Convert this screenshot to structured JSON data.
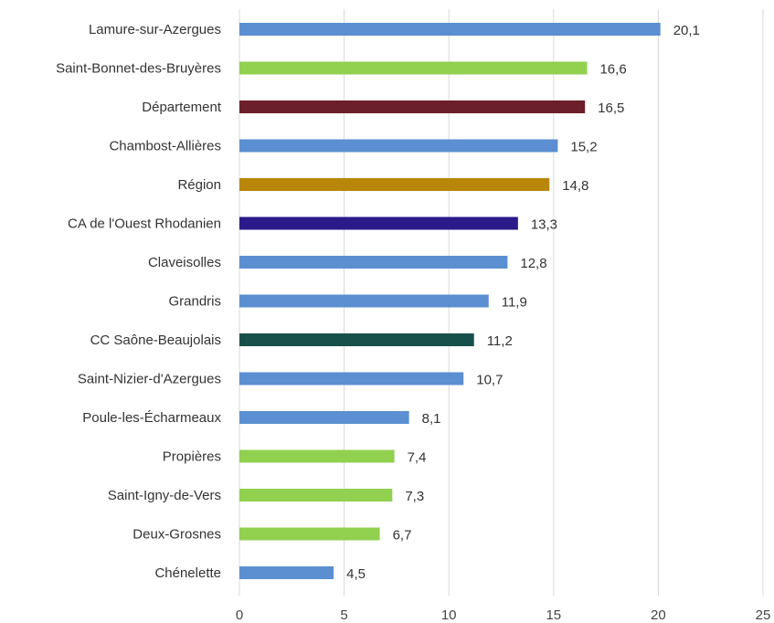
{
  "chart_data": {
    "type": "bar",
    "orientation": "horizontal",
    "title": "",
    "xlabel": "",
    "ylabel": "",
    "xlim": [
      0,
      25
    ],
    "xticks": [
      "0",
      "5",
      "10",
      "15",
      "20",
      "25"
    ],
    "grid": "vertical",
    "legend": "none",
    "categories": [
      "Lamure-sur-Azergues",
      "Saint-Bonnet-des-Bruyères",
      "Département",
      "Chambost-Allières",
      "Région",
      "CA de l'Ouest Rhodanien",
      "Claveisolles",
      "Grandris",
      "CC Saône-Beaujolais",
      "Saint-Nizier-d'Azergues",
      "Poule-les-Écharmeaux",
      "Propières",
      "Saint-Igny-de-Vers",
      "Deux-Grosnes",
      "Chénelette"
    ],
    "values": [
      20.1,
      16.6,
      16.5,
      15.2,
      14.8,
      13.3,
      12.8,
      11.9,
      11.2,
      10.7,
      8.1,
      7.4,
      7.3,
      6.7,
      4.5
    ],
    "value_labels": [
      "20,1",
      "16,6",
      "16,5",
      "15,2",
      "14,8",
      "13,3",
      "12,8",
      "11,9",
      "11,2",
      "10,7",
      "8,1",
      "7,4",
      "7,3",
      "6,7",
      "4,5"
    ],
    "colors": [
      "#5b8fd1",
      "#92d050",
      "#6b1f2a",
      "#5b8fd1",
      "#b8860b",
      "#2a1a8a",
      "#5b8fd1",
      "#5b8fd1",
      "#17504a",
      "#5b8fd1",
      "#5b8fd1",
      "#92d050",
      "#92d050",
      "#92d050",
      "#5b8fd1"
    ]
  }
}
